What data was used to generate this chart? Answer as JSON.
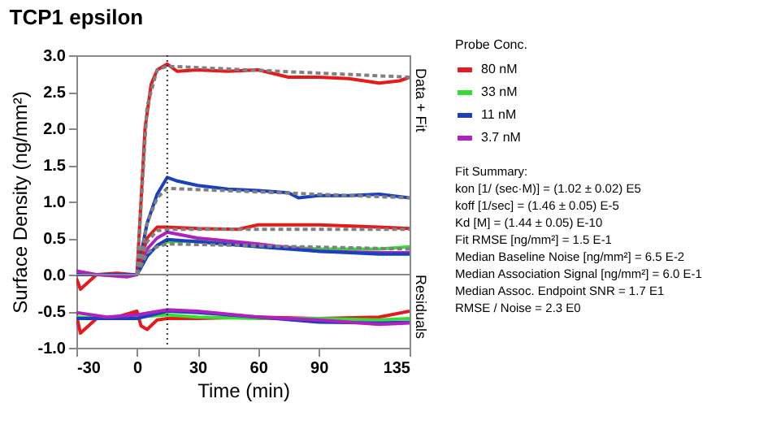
{
  "chart_data": {
    "type": "line",
    "title": "TCP1 epsilon",
    "xlabel": "Time (min)",
    "ylabel": "Surface Density (ng/mm²)",
    "legend_title": "Probe Conc.",
    "legend": "right",
    "grid": false,
    "line_style": "solid",
    "marker": "none",
    "xlim": [
      -30,
      135
    ],
    "xticks": [
      -30,
      0,
      30,
      60,
      90,
      135
    ],
    "ylim": [
      -1.0,
      3.0
    ],
    "yticks": [
      {
        "value": -1,
        "label": "-1.0"
      },
      {
        "value": -0.5,
        "label": "-0.5"
      },
      {
        "value": 0,
        "label": "0.0"
      },
      {
        "value": 0.5,
        "label": "0.5"
      },
      {
        "value": 1,
        "label": "1.0"
      },
      {
        "value": 1.5,
        "label": "1.5"
      },
      {
        "value": 2,
        "label": "2.0"
      },
      {
        "value": 2.5,
        "label": "2.5"
      },
      {
        "value": 3,
        "label": "3.0"
      }
    ],
    "series": [
      {
        "name": "80 nM",
        "color": "#e41a1c",
        "x": [
          -30,
          -28,
          -20,
          -10,
          -2,
          0,
          2,
          4,
          7,
          10,
          15,
          20,
          30,
          45,
          60,
          75,
          90,
          105,
          120,
          130,
          135
        ],
        "values": [
          -0.05,
          -0.2,
          0.0,
          0.02,
          0.0,
          0.0,
          1.0,
          2.0,
          2.6,
          2.8,
          2.88,
          2.78,
          2.8,
          2.78,
          2.8,
          2.7,
          2.7,
          2.68,
          2.62,
          2.65,
          2.7
        ]
      },
      {
        "name": "33 nM",
        "color": "#33dd33",
        "x": [
          0,
          5,
          10,
          15,
          30,
          45,
          60,
          90,
          120,
          135
        ],
        "values": [
          0.0,
          0.25,
          0.4,
          0.45,
          0.46,
          0.45,
          0.4,
          0.35,
          0.35,
          0.38
        ]
      },
      {
        "name": "11 nM",
        "color": "#1a3fbf",
        "x": [
          -30,
          -15,
          0,
          5,
          10,
          15,
          20,
          30,
          45,
          60,
          75,
          80,
          90,
          105,
          120,
          135
        ],
        "values": [
          0.0,
          0.0,
          0.0,
          0.7,
          1.1,
          1.33,
          1.28,
          1.22,
          1.17,
          1.15,
          1.12,
          1.05,
          1.08,
          1.08,
          1.1,
          1.05
        ]
      },
      {
        "name": "3.7 nM",
        "color": "#b020c0",
        "x": [
          -30,
          -20,
          -5,
          0,
          5,
          10,
          15,
          30,
          60,
          90,
          120,
          135
        ],
        "values": [
          0.05,
          0.0,
          -0.03,
          0.0,
          0.35,
          0.5,
          0.58,
          0.5,
          0.42,
          0.32,
          0.3,
          0.3
        ]
      },
      {
        "color": "#e41a1c",
        "x": [
          0,
          5,
          10,
          15,
          30,
          50,
          60,
          90,
          120,
          135
        ],
        "values": [
          0.0,
          0.5,
          0.65,
          0.65,
          0.63,
          0.62,
          0.68,
          0.68,
          0.65,
          0.63
        ]
      },
      {
        "color": "#1a3fbf",
        "x": [
          0,
          5,
          10,
          15,
          30,
          60,
          90,
          120,
          135
        ],
        "values": [
          0.0,
          0.25,
          0.4,
          0.48,
          0.45,
          0.38,
          0.32,
          0.28,
          0.28
        ]
      },
      {
        "color": "#808080",
        "line_style": "dashed",
        "x": [
          0,
          5,
          10,
          15,
          135
        ],
        "values": [
          0.0,
          2.3,
          2.8,
          2.85,
          2.7
        ]
      },
      {
        "color": "#808080",
        "line_style": "dashed",
        "x": [
          0,
          5,
          10,
          15,
          135
        ],
        "values": [
          0.0,
          0.7,
          1.05,
          1.18,
          1.05
        ]
      },
      {
        "color": "#808080",
        "line_style": "dashed",
        "x": [
          0,
          5,
          10,
          15,
          135
        ],
        "values": [
          0.0,
          0.45,
          0.6,
          0.62,
          0.62
        ]
      },
      {
        "color": "#808080",
        "line_style": "dashed",
        "x": [
          0,
          5,
          10,
          15,
          135
        ],
        "values": [
          0.0,
          0.3,
          0.38,
          0.42,
          0.35
        ]
      },
      {
        "color": "#e41a1c",
        "x": [
          -30,
          -28,
          -20,
          -10,
          0,
          2,
          5,
          10,
          15,
          30,
          60,
          90,
          120,
          135
        ],
        "values": [
          -0.55,
          -0.8,
          -0.6,
          -0.58,
          -0.5,
          -0.7,
          -0.75,
          -0.62,
          -0.6,
          -0.6,
          -0.58,
          -0.6,
          -0.58,
          -0.5
        ]
      },
      {
        "color": "#33dd33",
        "x": [
          -30,
          -15,
          0,
          15,
          30,
          60,
          90,
          120,
          135
        ],
        "values": [
          -0.58,
          -0.6,
          -0.58,
          -0.55,
          -0.58,
          -0.6,
          -0.6,
          -0.62,
          -0.6
        ]
      },
      {
        "color": "#1a3fbf",
        "x": [
          -30,
          -15,
          0,
          15,
          30,
          60,
          90,
          120,
          135
        ],
        "values": [
          -0.6,
          -0.6,
          -0.6,
          -0.5,
          -0.52,
          -0.58,
          -0.65,
          -0.66,
          -0.65
        ]
      },
      {
        "color": "#b020c0",
        "x": [
          -30,
          -15,
          0,
          15,
          30,
          60,
          90,
          120,
          135
        ],
        "values": [
          -0.52,
          -0.58,
          -0.55,
          -0.48,
          -0.5,
          -0.58,
          -0.62,
          -0.68,
          -0.66
        ]
      }
    ],
    "ref_lines": [
      {
        "axis": "x",
        "value": 15,
        "color": "#333333",
        "line_style": "dotted"
      },
      {
        "axis": "y",
        "value": 0,
        "color": "#888888",
        "line_style": "solid"
      }
    ],
    "annotations": [
      "Data + Fit",
      "Residuals",
      "Fit Summary:",
      "kon  [1/ (sec·M)]  =   (1.02 ± 0.02) E5",
      "koff  [1/sec]  =   (1.46 ± 0.05) E-5",
      "Kd  [M]  =   (1.44 ± 0.05) E-10",
      "Fit RMSE [ng/mm²]  =   1.5 E-1",
      "Median Baseline Noise [ng/mm²]  =   6.5 E-2",
      "Median Association Signal [ng/mm²]  =   6.0 E-1",
      "Median Assoc. Endpoint SNR  =   1.7 E1",
      "RMSE / Noise  =   2.3 E0"
    ]
  }
}
